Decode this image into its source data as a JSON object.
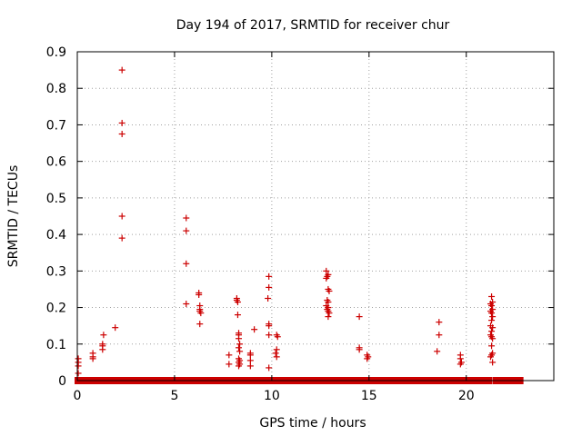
{
  "chart_data": {
    "type": "scatter",
    "title": "Day 194 of 2017, SRMTID for receiver chur",
    "xlabel": "GPS time / hours",
    "ylabel": "SRMTID / TECUs",
    "xlim": [
      0,
      24.5
    ],
    "ylim": [
      0,
      0.9
    ],
    "xticks": [
      0,
      5,
      10,
      15,
      20
    ],
    "yticks": [
      0,
      0.1,
      0.2,
      0.3,
      0.4,
      0.5,
      0.6,
      0.7,
      0.8,
      0.9
    ],
    "grid": true,
    "marker": "plus",
    "color": "#cc0000",
    "series": [
      {
        "name": "SRMTID",
        "zero_baseline": [
          [
            0.0,
            6.3
          ],
          [
            6.5,
            8.25
          ],
          [
            8.35,
            12.8
          ],
          [
            12.9,
            21.2
          ],
          [
            21.5,
            22.8
          ]
        ],
        "points": [
          [
            0.05,
            0.02
          ],
          [
            0.05,
            0.04
          ],
          [
            0.05,
            0.05
          ],
          [
            0.05,
            0.06
          ],
          [
            0.8,
            0.06
          ],
          [
            0.8,
            0.065
          ],
          [
            0.8,
            0.075
          ],
          [
            1.3,
            0.085
          ],
          [
            1.3,
            0.095
          ],
          [
            1.3,
            0.1
          ],
          [
            1.35,
            0.125
          ],
          [
            1.95,
            0.145
          ],
          [
            2.3,
            0.85
          ],
          [
            2.3,
            0.705
          ],
          [
            2.3,
            0.675
          ],
          [
            2.3,
            0.45
          ],
          [
            2.3,
            0.39
          ],
          [
            5.6,
            0.445
          ],
          [
            5.6,
            0.41
          ],
          [
            5.6,
            0.32
          ],
          [
            5.6,
            0.21
          ],
          [
            6.25,
            0.24
          ],
          [
            6.25,
            0.235
          ],
          [
            6.3,
            0.205
          ],
          [
            6.3,
            0.195
          ],
          [
            6.3,
            0.19
          ],
          [
            6.35,
            0.185
          ],
          [
            6.3,
            0.155
          ],
          [
            7.8,
            0.07
          ],
          [
            7.8,
            0.045
          ],
          [
            8.2,
            0.225
          ],
          [
            8.2,
            0.22
          ],
          [
            8.25,
            0.215
          ],
          [
            8.25,
            0.18
          ],
          [
            8.3,
            0.13
          ],
          [
            8.3,
            0.125
          ],
          [
            8.3,
            0.115
          ],
          [
            8.35,
            0.1
          ],
          [
            8.3,
            0.09
          ],
          [
            8.35,
            0.08
          ],
          [
            8.3,
            0.06
          ],
          [
            8.35,
            0.055
          ],
          [
            8.3,
            0.05
          ],
          [
            8.35,
            0.045
          ],
          [
            8.3,
            0.04
          ],
          [
            8.9,
            0.075
          ],
          [
            8.9,
            0.07
          ],
          [
            8.9,
            0.055
          ],
          [
            8.9,
            0.04
          ],
          [
            9.1,
            0.14
          ],
          [
            9.85,
            0.285
          ],
          [
            9.85,
            0.255
          ],
          [
            9.8,
            0.225
          ],
          [
            9.85,
            0.155
          ],
          [
            9.85,
            0.15
          ],
          [
            9.85,
            0.125
          ],
          [
            9.85,
            0.035
          ],
          [
            10.25,
            0.125
          ],
          [
            10.3,
            0.12
          ],
          [
            10.25,
            0.085
          ],
          [
            10.2,
            0.075
          ],
          [
            10.25,
            0.065
          ],
          [
            12.8,
            0.3
          ],
          [
            12.9,
            0.29
          ],
          [
            12.85,
            0.285
          ],
          [
            12.8,
            0.28
          ],
          [
            12.9,
            0.25
          ],
          [
            12.95,
            0.245
          ],
          [
            12.85,
            0.22
          ],
          [
            12.9,
            0.215
          ],
          [
            12.8,
            0.205
          ],
          [
            12.9,
            0.2
          ],
          [
            12.85,
            0.195
          ],
          [
            12.9,
            0.19
          ],
          [
            12.95,
            0.185
          ],
          [
            12.9,
            0.175
          ],
          [
            14.5,
            0.175
          ],
          [
            14.5,
            0.09
          ],
          [
            14.5,
            0.085
          ],
          [
            14.9,
            0.07
          ],
          [
            14.95,
            0.065
          ],
          [
            14.9,
            0.06
          ],
          [
            18.5,
            0.08
          ],
          [
            18.6,
            0.16
          ],
          [
            18.6,
            0.125
          ],
          [
            19.7,
            0.07
          ],
          [
            19.7,
            0.06
          ],
          [
            19.75,
            0.05
          ],
          [
            19.7,
            0.045
          ],
          [
            21.3,
            0.23
          ],
          [
            21.35,
            0.215
          ],
          [
            21.25,
            0.21
          ],
          [
            21.3,
            0.205
          ],
          [
            21.35,
            0.195
          ],
          [
            21.25,
            0.19
          ],
          [
            21.3,
            0.185
          ],
          [
            21.35,
            0.175
          ],
          [
            21.3,
            0.165
          ],
          [
            21.25,
            0.15
          ],
          [
            21.35,
            0.145
          ],
          [
            21.3,
            0.135
          ],
          [
            21.25,
            0.125
          ],
          [
            21.3,
            0.12
          ],
          [
            21.35,
            0.115
          ],
          [
            21.3,
            0.095
          ],
          [
            21.35,
            0.075
          ],
          [
            21.3,
            0.07
          ],
          [
            21.25,
            0.065
          ],
          [
            21.35,
            0.05
          ]
        ]
      }
    ]
  }
}
